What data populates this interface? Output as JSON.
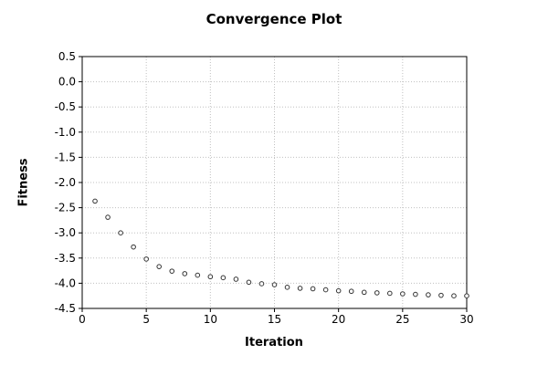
{
  "chart_data": {
    "type": "scatter",
    "title": "Convergence Plot",
    "xlabel": "Iteration",
    "ylabel": "Fitness",
    "x": [
      1,
      2,
      3,
      4,
      5,
      6,
      7,
      8,
      9,
      10,
      11,
      12,
      13,
      14,
      15,
      16,
      17,
      18,
      19,
      20,
      21,
      22,
      23,
      24,
      25,
      26,
      27,
      28,
      29,
      30
    ],
    "series": [
      {
        "name": "fitness",
        "values": [
          -2.37,
          -2.69,
          -3.0,
          -3.28,
          -3.52,
          -3.67,
          -3.76,
          -3.81,
          -3.84,
          -3.87,
          -3.89,
          -3.92,
          -3.98,
          -4.01,
          -4.03,
          -4.08,
          -4.1,
          -4.11,
          -4.13,
          -4.15,
          -4.16,
          -4.18,
          -4.19,
          -4.2,
          -4.21,
          -4.22,
          -4.23,
          -4.24,
          -4.25,
          -4.25
        ]
      }
    ],
    "xlim": [
      0,
      30
    ],
    "ylim": [
      -4.5,
      0.5
    ],
    "xticks": {
      "values": [
        0,
        5,
        10,
        15,
        20,
        25,
        30
      ],
      "labels": [
        "0",
        "5",
        "10",
        "15",
        "20",
        "25",
        "30"
      ]
    },
    "yticks": {
      "values": [
        0.5,
        0.0,
        -0.5,
        -1.0,
        -1.5,
        -2.0,
        -2.5,
        -3.0,
        -3.5,
        -4.0,
        -4.5
      ],
      "labels": [
        "0.5",
        "0.0",
        "-0.5",
        "-1.0",
        "-1.5",
        "-2.0",
        "-2.5",
        "-3.0",
        "-3.5",
        "-4.0",
        "-4.5"
      ]
    },
    "grid": true,
    "legend": "none",
    "marker": "open-circle",
    "colors": {
      "frame": "#000000",
      "gridline": "#c0c0c0",
      "marker_stroke": "#333333",
      "background": "#ffffff",
      "text": "#000000"
    }
  }
}
